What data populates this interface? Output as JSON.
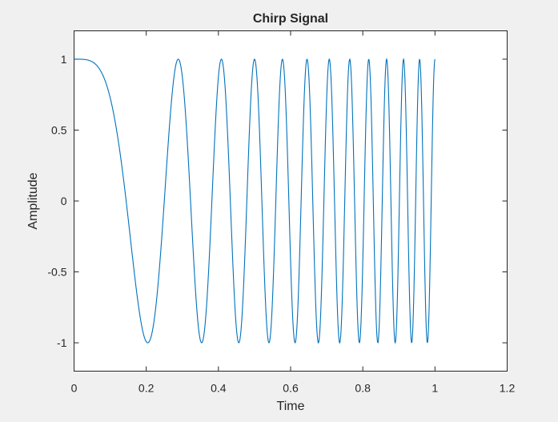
{
  "colors": {
    "figure_background": "#f0f0f0",
    "axes_background": "#ffffff",
    "axes_color": "#262626",
    "series_color": "#0072bd"
  },
  "chart_data": {
    "type": "line",
    "title": "Chirp Signal",
    "xlabel": "Time",
    "ylabel": "Amplitude",
    "xlim": [
      0,
      1.2
    ],
    "ylim": [
      -1.2,
      1.2
    ],
    "xticks": [
      0,
      0.2,
      0.4,
      0.6,
      0.8,
      1,
      1.2
    ],
    "xtick_labels": [
      "0",
      "0.2",
      "0.4",
      "0.6",
      "0.8",
      "1",
      "1.2"
    ],
    "yticks": [
      -1,
      -0.5,
      0,
      0.5,
      1
    ],
    "ytick_labels": [
      "-1",
      "-0.5",
      "0",
      "0.5",
      "1"
    ],
    "grid": false,
    "legend": "none",
    "series": [
      {
        "signal": "cos(2*pi*(f0*t + (f1-f0)/2*t^2))",
        "f0": 0,
        "f1": 24,
        "t_start": 0,
        "t_end": 1,
        "samples": 1000
      }
    ]
  }
}
